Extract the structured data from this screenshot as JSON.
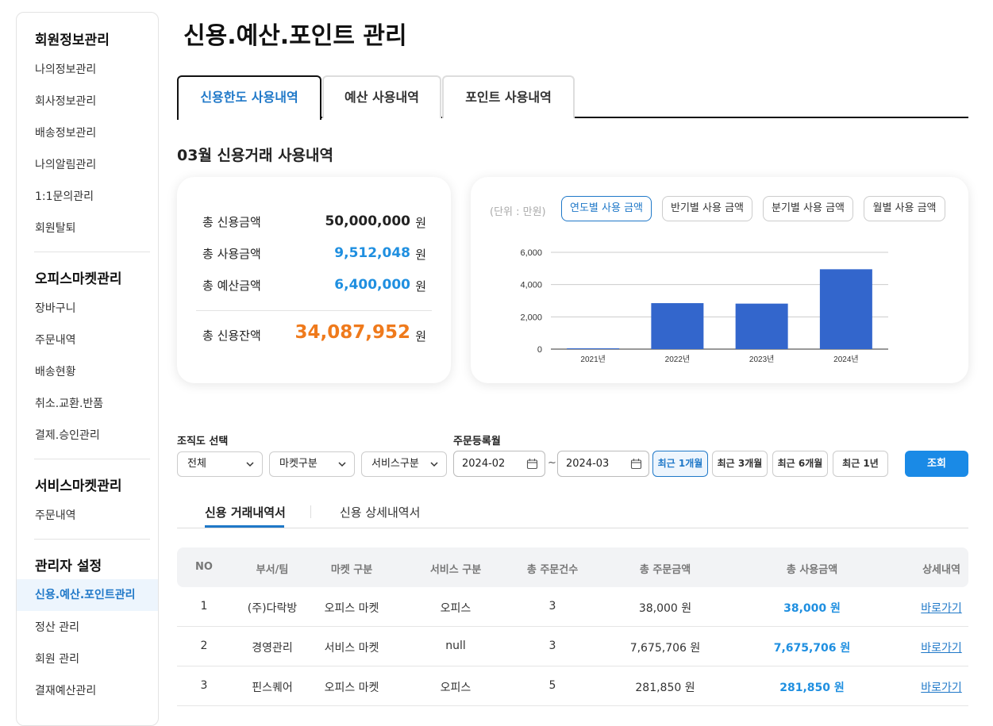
{
  "sidebar": {
    "sections": [
      {
        "title": "회원정보관리",
        "items": [
          "나의정보관리",
          "회사정보관리",
          "배송정보관리",
          "나의알림관리",
          "1:1문의관리",
          "회원탈퇴"
        ]
      },
      {
        "title": "오피스마켓관리",
        "items": [
          "장바구니",
          "주문내역",
          "배송현황",
          "취소.교환.반품",
          "결제.승인관리"
        ]
      },
      {
        "title": "서비스마켓관리",
        "items": [
          "주문내역"
        ]
      },
      {
        "title": "관리자 설정",
        "items": [
          "신용.예산.포인트관리",
          "정산 관리",
          "회원 관리",
          "결재예산관리"
        ]
      }
    ],
    "active_item": "신용.예산.포인트관리"
  },
  "page_title": "신용.예산.포인트 관리",
  "tabs": [
    "신용한도 사용내역",
    "예산 사용내역",
    "포인트 사용내역"
  ],
  "section_title": "03월 신용거래 사용내역",
  "summary": {
    "rows": [
      {
        "label": "총 신용금액",
        "value": "50,000,000",
        "unit": "원"
      },
      {
        "label": "총 사용금액",
        "value": "9,512,048",
        "unit": "원"
      },
      {
        "label": "총 예산금액",
        "value": "6,400,000",
        "unit": "원"
      },
      {
        "label": "총 신용잔액",
        "value": "34,087,952",
        "unit": "원"
      }
    ]
  },
  "chart_panel": {
    "unit_label": "(단위 : 만원)",
    "buttons": [
      "연도별 사용 금액",
      "반기별 사용 금액",
      "분기별 사용 금액",
      "월별 사용 금액"
    ],
    "active_button": "연도별 사용 금액"
  },
  "chart_data": {
    "type": "bar",
    "categories": [
      "2021년",
      "2022년",
      "2023년",
      "2024년"
    ],
    "values": [
      0,
      2850,
      2820,
      4950
    ],
    "yticks": [
      "0",
      "2,000",
      "4,000",
      "6,000"
    ],
    "ylim": [
      0,
      6000
    ],
    "grid": true,
    "title": "",
    "xlabel": "",
    "ylabel": "",
    "color": "#3366cc"
  },
  "filters": {
    "org_label": "조직도 선택",
    "date_label": "주문등록월",
    "selects": [
      "전체",
      "마켓구분",
      "서비스구분"
    ],
    "date_from": "2024-02",
    "date_to": "2024-03",
    "tilde": "~",
    "periods": [
      "최근 1개월",
      "최근 3개월",
      "최근 6개월",
      "최근 1년"
    ],
    "active_period": "최근 1개월",
    "search_label": "조회"
  },
  "subtabs": [
    "신용 거래내역서",
    "신용 상세내역서"
  ],
  "table": {
    "headers": [
      "NO",
      "부서/팀",
      "마켓 구분",
      "서비스 구분",
      "총 주문건수",
      "총 주문금액",
      "총 사용금액",
      "상세내역"
    ],
    "rows": [
      [
        "1",
        "(주)다락방",
        "오피스 마켓",
        "오피스",
        "3",
        "38,000 원",
        "38,000 원",
        "바로가기"
      ],
      [
        "2",
        "경영관리",
        "서비스 마켓",
        "null",
        "3",
        "7,675,706 원",
        "7,675,706 원",
        "바로가기"
      ],
      [
        "3",
        "핀스퀘어",
        "오피스 마켓",
        "오피스",
        "5",
        "281,850 원",
        "281,850 원",
        "바로가기"
      ]
    ]
  },
  "colors": {
    "accent": "#1f78c8",
    "blue_value": "#1f8fe0",
    "orange_value": "#ef7a1c",
    "search_button": "#1a8ae6"
  }
}
